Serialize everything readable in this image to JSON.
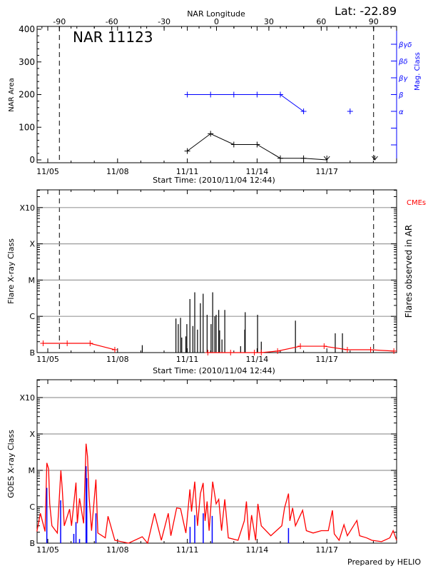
{
  "colors": {
    "area": "#000000",
    "mag_class": "#0000ff",
    "cmes": "#ff0000",
    "flares": "#000000",
    "goes_long": "#ff0000",
    "goes_short": "#0000ff",
    "grid": "#9a9a9a"
  },
  "footer": "Prepared by HELIO",
  "chart_data": [
    {
      "type": "line",
      "title": "NAR 11123",
      "annotation": "Lat: -22.89",
      "top_xlabel": "NAR Longitude",
      "top_xticks": [
        "-90",
        "-60",
        "-30",
        "0",
        "30",
        "60",
        "90"
      ],
      "top_xtick_values": [
        -90,
        -60,
        -30,
        0,
        30,
        60,
        90
      ],
      "xlabel": "Start Time: (2010/11/04 12:44)",
      "xticks": [
        "11/05",
        "11/08",
        "11/11",
        "11/14",
        "11/17"
      ],
      "ylabel": "NAR Area",
      "yticks": [
        "0",
        "100",
        "200",
        "300",
        "400"
      ],
      "ylim": [
        -8,
        408
      ],
      "y2label": "Mag. Class",
      "y2ticks": [
        "α",
        "β",
        "βγ",
        "βδ",
        "βγδ"
      ],
      "dashed_lines_longitude": [
        -90,
        90
      ],
      "area_series": {
        "x": [
          "11/11 00:00",
          "11/12 00:00",
          "11/13 00:00",
          "11/14 00:00",
          "11/15 00:00",
          "11/16 00:00",
          "11/17 00:00",
          "11/19 01:30"
        ],
        "values": [
          27,
          80,
          47,
          47,
          5,
          5,
          0,
          0
        ]
      },
      "mag_class_series": {
        "x": [
          "11/11 00:00",
          "11/12 00:00",
          "11/13 00:00",
          "11/14 00:00",
          "11/15 00:00",
          "11/16 00:00",
          "11/18 00:00"
        ],
        "values": [
          "β",
          "β",
          "β",
          "β",
          "β",
          "α",
          "α"
        ]
      }
    },
    {
      "type": "bar",
      "xlabel": "Start Time: (2010/11/04 12:44)",
      "xticks": [
        "11/05",
        "11/08",
        "11/11",
        "11/14",
        "11/17"
      ],
      "ylabel": "Flare X-ray Class",
      "yscale": "log",
      "yticks": [
        "B",
        "C",
        "M",
        "X",
        "X10"
      ],
      "ytick_values": [
        1e-07,
        1e-06,
        1e-05,
        0.0001,
        0.001
      ],
      "grid": true,
      "y2label": "Flares observed in AR",
      "legend": "CMEs",
      "flares": {
        "x": [
          "11/09 01:30",
          "11/10 12:15",
          "11/10 14:40",
          "11/10 17:00",
          "11/10 18:15",
          "11/10 22:30",
          "11/10 23:30",
          "11/11 02:40",
          "11/11 05:45",
          "11/11 07:40",
          "11/11 10:30",
          "11/11 13:30",
          "11/11 16:20",
          "11/11 20:25",
          "11/12 00:30",
          "11/12 02:10",
          "11/12 04:20",
          "11/12 05:45",
          "11/12 08:25",
          "11/12 09:20",
          "11/12 11:45",
          "11/12 14:40",
          "11/13 07:00",
          "11/13 11:15",
          "11/13 11:45",
          "11/14 00:30",
          "11/14 04:20",
          "11/15 15:35",
          "11/17 08:40",
          "11/17 16:05"
        ],
        "values": [
          1.6e-07,
          8.7e-07,
          6.1e-07,
          9.1e-07,
          2.6e-07,
          2.8e-07,
          6.1e-07,
          3e-06,
          5.4e-07,
          4.6e-06,
          4.3e-07,
          2.3e-06,
          4.2e-06,
          1.1e-06,
          6.1e-07,
          4.6e-06,
          1e-06,
          1.1e-06,
          1.5e-06,
          4.1e-07,
          2.3e-07,
          1.5e-06,
          1.5e-07,
          4.3e-07,
          1.3e-06,
          1.1e-06,
          2e-07,
          7.6e-07,
          3.4e-07,
          3.4e-07
        ]
      },
      "cmes": [
        {
          "x": [
            "11/04 19:10",
            "11/05 20:00",
            "11/06 19:40",
            "11/07 21:10"
          ],
          "values": [
            1.8e-07,
            1.8e-07,
            1.8e-07,
            1.2e-07
          ]
        },
        {
          "x": [
            "11/11 21:10",
            "11/12 20:40",
            "11/13 21:10",
            "11/14 04:20",
            "11/14 21:10",
            "11/15 20:40",
            "11/16 21:10",
            "11/17 21:10",
            "11/18 21:10",
            "11/19 21:10"
          ],
          "values": [
            1e-07,
            1e-07,
            1e-07,
            1e-07,
            1.1e-07,
            1.5e-07,
            1.5e-07,
            1.2e-07,
            1.2e-07,
            1.1e-07
          ]
        }
      ]
    },
    {
      "type": "line",
      "xticks": [
        "11/05",
        "11/08",
        "11/11",
        "11/14",
        "11/17"
      ],
      "ylabel": "GOES X-ray Class",
      "yscale": "log",
      "yticks": [
        "B",
        "C",
        "M",
        "X",
        "X10"
      ],
      "ytick_values": [
        1e-07,
        1e-06,
        1e-05,
        0.0001,
        0.001
      ],
      "grid": true,
      "goes_long": {
        "x": [
          "11/04 12:45",
          "11/04 16:20",
          "11/04 21:10",
          "11/04 23:00",
          "11/05 00:50",
          "11/05 02:00",
          "11/05 04:15",
          "11/05 09:50",
          "11/05 13:30",
          "11/05 15:00",
          "11/05 17:00",
          "11/05 22:30",
          "11/06 00:30",
          "11/06 05:05",
          "11/06 06:30",
          "11/06 08:45",
          "11/06 13:00",
          "11/06 15:30",
          "11/06 17:00",
          "11/06 18:40",
          "11/06 21:10",
          "11/07 01:40",
          "11/07 03:40",
          "11/07 11:20",
          "11/07 14:10",
          "11/07 21:10",
          "11/08 11:20",
          "11/09 01:30",
          "11/09 07:00",
          "11/09 14:10",
          "11/09 21:10",
          "11/10 04:20",
          "11/10 07:00",
          "11/10 13:00",
          "11/10 17:00",
          "11/10 22:30",
          "11/11 02:40",
          "11/11 04:20",
          "11/11 07:40",
          "11/11 10:30",
          "11/11 13:30",
          "11/11 16:20",
          "11/11 18:20",
          "11/11 20:25",
          "11/11 22:30",
          "11/12 02:10",
          "11/12 05:45",
          "11/12 08:25",
          "11/12 11:20",
          "11/12 14:40",
          "11/12 18:20",
          "11/13 04:20",
          "11/13 10:50",
          "11/13 13:00",
          "11/13 15:35",
          "11/13 18:20",
          "11/13 22:30",
          "11/14 00:50",
          "11/14 04:20",
          "11/14 14:10",
          "11/15 01:30",
          "11/15 04:20",
          "11/15 08:25",
          "11/15 09:50",
          "11/15 12:40",
          "11/15 15:35",
          "11/15 23:00",
          "11/16 02:50",
          "11/16 09:50",
          "11/16 18:20",
          "11/17 01:30",
          "11/17 05:45",
          "11/17 07:40",
          "11/17 12:40",
          "11/17 17:40",
          "11/17 21:10",
          "11/18 07:00",
          "11/18 09:50",
          "11/18 17:00",
          "11/18 22:30",
          "11/19 08:25",
          "11/19 17:00",
          "11/19 20:25",
          "11/20 00:00"
        ],
        "values": [
          2.1e-07,
          6.6e-07,
          2.1e-07,
          1.6e-05,
          1.1e-05,
          1.2e-06,
          3e-07,
          1.9e-07,
          1e-05,
          2.9e-06,
          3e-07,
          8.6e-07,
          3e-07,
          4.6e-06,
          3.5e-07,
          1.7e-06,
          3.5e-07,
          5.4e-05,
          2.4e-05,
          1.8e-06,
          2.2e-07,
          5.6e-06,
          1.9e-07,
          1.4e-07,
          5.5e-07,
          1.2e-07,
          1e-07,
          1.5e-07,
          1e-07,
          6.6e-07,
          1.2e-07,
          6.6e-07,
          1.6e-07,
          9.3e-07,
          8.9e-07,
          1.9e-07,
          3e-06,
          7.4e-07,
          4.9e-06,
          3e-07,
          2.3e-06,
          4.5e-06,
          4.1e-07,
          1.4e-06,
          2.2e-07,
          4.9e-06,
          1.2e-06,
          1.6e-06,
          2.2e-07,
          1.6e-06,
          1.4e-07,
          1.2e-07,
          4.1e-07,
          1.4e-06,
          1.2e-07,
          5.9e-07,
          1.2e-07,
          1.2e-06,
          3e-07,
          1.6e-07,
          3e-07,
          9.3e-07,
          2.3e-06,
          4.1e-07,
          9.3e-07,
          3e-07,
          8e-07,
          2.2e-07,
          1.9e-07,
          2.2e-07,
          2.2e-07,
          8e-07,
          1.8e-07,
          1.2e-07,
          3.2e-07,
          1.6e-07,
          4.2e-07,
          1.6e-07,
          1.4e-07,
          1.2e-07,
          1.1e-07,
          1.4e-07,
          2.2e-07,
          1.2e-07
        ]
      },
      "goes_short": {
        "x": [
          "11/04 23:00",
          "11/05 13:15",
          "11/06 02:50",
          "11/06 05:05",
          "11/06 08:45",
          "11/06 15:30",
          "11/06 16:15",
          "11/07 01:40",
          "11/11 02:50",
          "11/11 07:40",
          "11/11 16:25",
          "11/12 01:40",
          "11/15 08:25"
        ],
        "values": [
          3.3e-06,
          1.5e-06,
          1.8e-07,
          3.8e-07,
          1.3e-07,
          1.3e-05,
          6.1e-06,
          6.6e-07,
          2.8e-07,
          5.9e-07,
          6.6e-07,
          5.6e-07,
          2.6e-07
        ]
      }
    }
  ]
}
